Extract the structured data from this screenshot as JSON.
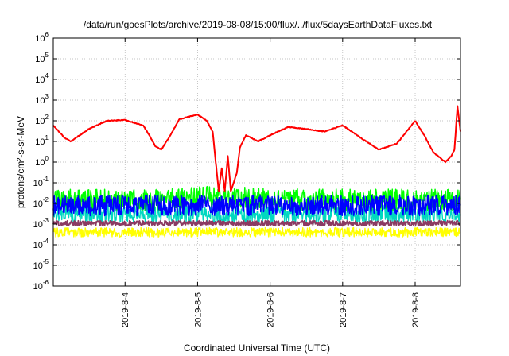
{
  "chart_data": {
    "type": "line",
    "title": "/data/run/goesPlots/archive/2019-08-08/15:00/flux/../flux/5daysEarthDataFluxes.txt",
    "xlabel": "Coordinated Universal Time (UTC)",
    "ylabel": "protons/cm²-s-sr-MeV",
    "y_scale": "log",
    "ylim": [
      1e-06,
      1000000.0
    ],
    "xlim": [
      "2019-08-03 00:15",
      "2019-08-08 15:00"
    ],
    "grid": true,
    "legend": "none",
    "x_ticks": [
      "2019-8-4",
      "2019-8-5",
      "2019-8-6",
      "2019-8-7",
      "2019-8-8"
    ],
    "y_ticks": [
      {
        "base": "10",
        "exp": "-6"
      },
      {
        "base": "10",
        "exp": "-5"
      },
      {
        "base": "10",
        "exp": "-4"
      },
      {
        "base": "10",
        "exp": "-3"
      },
      {
        "base": "10",
        "exp": "-2"
      },
      {
        "base": "10",
        "exp": "-1"
      },
      {
        "base": "10",
        "exp": "0"
      },
      {
        "base": "10",
        "exp": "1"
      },
      {
        "base": "10",
        "exp": "2"
      },
      {
        "base": "10",
        "exp": "3"
      },
      {
        "base": "10",
        "exp": "4"
      },
      {
        "base": "10",
        "exp": "5"
      },
      {
        "base": "10",
        "exp": "6"
      }
    ],
    "series": [
      {
        "color": "#ffff00",
        "x": [
          "2019-08-03 00:15",
          "2019-08-03 12:00",
          "2019-08-04 00:00",
          "2019-08-04 12:00",
          "2019-08-05 00:00",
          "2019-08-05 12:00",
          "2019-08-06 00:00",
          "2019-08-06 12:00",
          "2019-08-07 00:00",
          "2019-08-07 12:00",
          "2019-08-08 00:00",
          "2019-08-08 15:00"
        ],
        "y": [
          0.0004,
          0.0004,
          0.0004,
          0.0004,
          0.0004,
          0.0004,
          0.0004,
          0.0004,
          0.0004,
          0.0004,
          0.0004,
          0.0004
        ]
      },
      {
        "color": "#00d8c0",
        "x": [
          "2019-08-03 00:15",
          "2019-08-03 12:00",
          "2019-08-04 00:00",
          "2019-08-04 12:00",
          "2019-08-05 00:00",
          "2019-08-05 12:00",
          "2019-08-06 00:00",
          "2019-08-06 12:00",
          "2019-08-07 00:00",
          "2019-08-07 12:00",
          "2019-08-08 00:00",
          "2019-08-08 15:00"
        ],
        "y": [
          0.003,
          0.003,
          0.003,
          0.003,
          0.003,
          0.003,
          0.003,
          0.003,
          0.003,
          0.003,
          0.003,
          0.003
        ]
      },
      {
        "color": "#00ff00",
        "x": [
          "2019-08-03 00:15",
          "2019-08-03 12:00",
          "2019-08-04 00:00",
          "2019-08-04 12:00",
          "2019-08-05 00:00",
          "2019-08-05 12:00",
          "2019-08-06 00:00",
          "2019-08-06 12:00",
          "2019-08-07 00:00",
          "2019-08-07 12:00",
          "2019-08-08 00:00",
          "2019-08-08 15:00"
        ],
        "y": [
          0.015,
          0.015,
          0.015,
          0.015,
          0.02,
          0.02,
          0.015,
          0.015,
          0.015,
          0.015,
          0.015,
          0.015
        ]
      },
      {
        "color": "#0000ff",
        "x": [
          "2019-08-03 00:15",
          "2019-08-03 12:00",
          "2019-08-04 00:00",
          "2019-08-04 12:00",
          "2019-08-05 00:00",
          "2019-08-05 12:00",
          "2019-08-06 00:00",
          "2019-08-06 12:00",
          "2019-08-07 00:00",
          "2019-08-07 12:00",
          "2019-08-08 00:00",
          "2019-08-08 15:00"
        ],
        "y": [
          0.008,
          0.008,
          0.008,
          0.008,
          0.008,
          0.008,
          0.008,
          0.008,
          0.008,
          0.008,
          0.008,
          0.008
        ]
      },
      {
        "color": "#8b3a62",
        "x": [
          "2019-08-03 00:15",
          "2019-08-03 12:00",
          "2019-08-04 00:00",
          "2019-08-04 12:00",
          "2019-08-05 00:00",
          "2019-08-05 12:00",
          "2019-08-06 00:00",
          "2019-08-06 12:00",
          "2019-08-07 00:00",
          "2019-08-07 12:00",
          "2019-08-08 00:00",
          "2019-08-08 15:00"
        ],
        "y": [
          0.0011,
          0.0011,
          0.0011,
          0.0011,
          0.0011,
          0.0011,
          0.0011,
          0.0011,
          0.0011,
          0.0011,
          0.0011,
          0.0011
        ]
      },
      {
        "color": "#ff0000",
        "x": [
          "2019-08-03 00:15",
          "2019-08-03 04:00",
          "2019-08-03 06:00",
          "2019-08-03 12:00",
          "2019-08-03 18:00",
          "2019-08-04 00:00",
          "2019-08-04 06:00",
          "2019-08-04 08:00",
          "2019-08-04 10:00",
          "2019-08-04 12:00",
          "2019-08-04 15:00",
          "2019-08-04 18:00",
          "2019-08-05 00:00",
          "2019-08-05 03:00",
          "2019-08-05 05:00",
          "2019-08-05 06:00",
          "2019-08-05 07:00",
          "2019-08-05 08:00",
          "2019-08-05 09:00",
          "2019-08-05 10:00",
          "2019-08-05 11:00",
          "2019-08-05 13:00",
          "2019-08-05 14:00",
          "2019-08-05 16:00",
          "2019-08-05 20:00",
          "2019-08-06 00:00",
          "2019-08-06 06:00",
          "2019-08-06 12:00",
          "2019-08-06 18:00",
          "2019-08-07 00:00",
          "2019-08-07 06:00",
          "2019-08-07 12:00",
          "2019-08-07 18:00",
          "2019-08-08 00:00",
          "2019-08-08 03:00",
          "2019-08-08 06:00",
          "2019-08-08 10:00",
          "2019-08-08 12:00",
          "2019-08-08 13:00",
          "2019-08-08 14:00",
          "2019-08-08 15:00"
        ],
        "y": [
          60,
          15,
          10,
          40,
          100,
          110,
          60,
          20,
          6,
          4,
          20,
          120,
          200,
          100,
          30,
          1,
          0.04,
          0.5,
          0.04,
          2,
          0.04,
          0.3,
          5,
          20,
          10,
          20,
          50,
          40,
          30,
          60,
          15,
          4,
          8,
          100,
          20,
          3,
          1,
          2,
          4,
          500,
          30
        ]
      }
    ]
  }
}
